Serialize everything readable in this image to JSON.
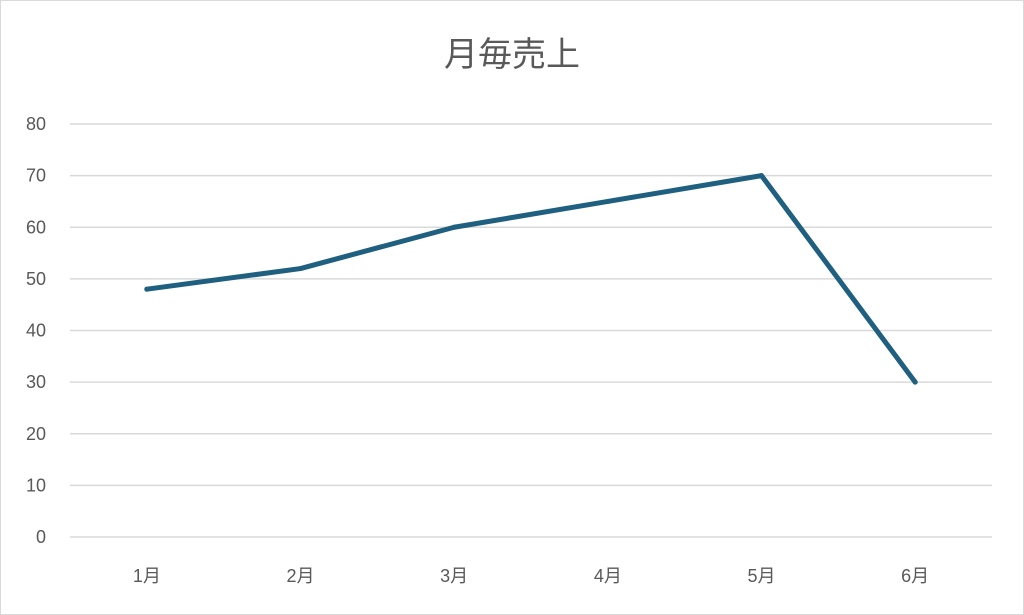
{
  "chart_data": {
    "type": "line",
    "title": "月毎売上",
    "xlabel": "",
    "ylabel": "",
    "categories": [
      "1月",
      "2月",
      "3月",
      "4月",
      "5月",
      "6月"
    ],
    "series": [
      {
        "values": [
          48,
          52,
          60,
          65,
          70,
          30
        ],
        "color": "#1f5f7f"
      }
    ],
    "ylim": [
      0,
      80
    ],
    "yticks": [
      0,
      10,
      20,
      30,
      40,
      50,
      60,
      70,
      80
    ],
    "grid": true,
    "gridColor": "#d9d9d9",
    "legend": "none"
  }
}
